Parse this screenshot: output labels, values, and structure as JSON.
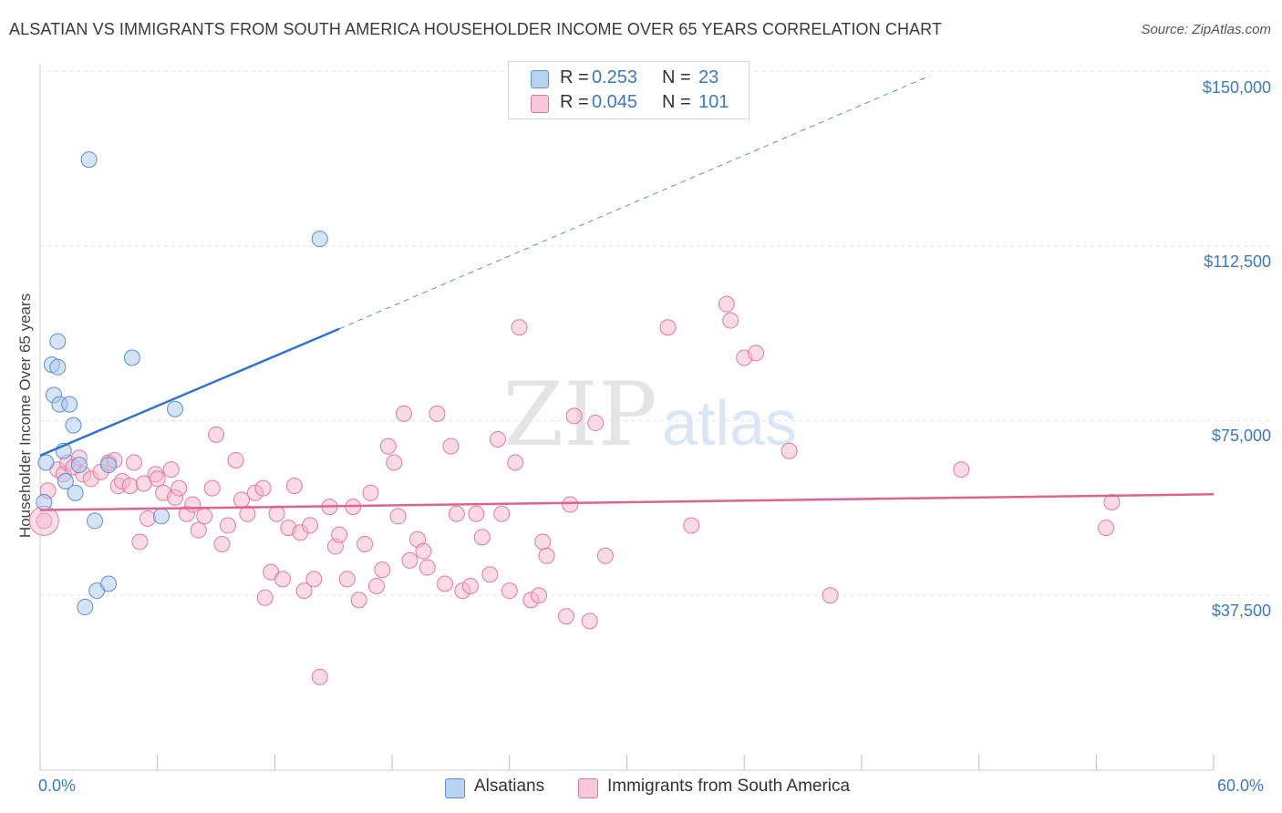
{
  "title": "ALSATIAN VS IMMIGRANTS FROM SOUTH AMERICA HOUSEHOLDER INCOME OVER 65 YEARS CORRELATION CHART",
  "source": "Source: ZipAtlas.com",
  "watermark": {
    "zip": "ZIP",
    "atlas": "atlas"
  },
  "stats": [
    {
      "r_label": "R =",
      "r_value": "0.253",
      "n_label": "N =",
      "n_value": "23"
    },
    {
      "r_label": "R =",
      "r_value": "0.045",
      "n_label": "N =",
      "n_value": "101"
    }
  ],
  "legend": {
    "series1": "Alsatians",
    "series2": "Immigrants from South America"
  },
  "colors": {
    "blue_fill": "#a9c7ee",
    "blue_stroke": "#5a8fd6",
    "blue_line": "#2f72cf",
    "pink_fill": "#f6b8cb",
    "pink_stroke": "#e07a9c",
    "pink_line": "#e0628f",
    "tick_label": "#3a78c9",
    "grid": "#e3e3e3"
  },
  "chart_data": {
    "type": "scatter",
    "title": "ALSATIAN VS IMMIGRANTS FROM SOUTH AMERICA HOUSEHOLDER INCOME OVER 65 YEARS CORRELATION CHART",
    "xlabel": "",
    "ylabel": "Householder Income Over 65 years",
    "xlim": [
      0,
      60
    ],
    "ylim": [
      0,
      156000
    ],
    "x_tick_labels": [
      "0.0%",
      "60.0%"
    ],
    "y_ticks": [
      37500,
      75000,
      112500,
      150000
    ],
    "y_tick_labels": [
      "$37,500",
      "$75,000",
      "$112,500",
      "$150,000"
    ],
    "series": [
      {
        "name": "Alsatians",
        "color": "blue",
        "trend": {
          "x0": 0,
          "y0": 67500,
          "x1": 15.3,
          "y1": 94700,
          "dash_to_x": 45.5,
          "dash_to_y": 149000
        },
        "points": [
          [
            0.2,
            57500
          ],
          [
            0.3,
            66000
          ],
          [
            0.6,
            87000
          ],
          [
            0.7,
            80500
          ],
          [
            0.9,
            92000
          ],
          [
            0.9,
            86500
          ],
          [
            1.0,
            78500
          ],
          [
            1.2,
            68500
          ],
          [
            1.3,
            62000
          ],
          [
            1.5,
            78500
          ],
          [
            1.7,
            74000
          ],
          [
            1.8,
            59500
          ],
          [
            2.0,
            65500
          ],
          [
            2.3,
            35000
          ],
          [
            2.5,
            131000
          ],
          [
            2.8,
            53500
          ],
          [
            2.9,
            38500
          ],
          [
            3.5,
            40000
          ],
          [
            3.5,
            65500
          ],
          [
            4.7,
            88500
          ],
          [
            6.2,
            54500
          ],
          [
            6.9,
            77500
          ],
          [
            14.3,
            114000
          ]
        ]
      },
      {
        "name": "Immigrants from South America",
        "color": "pink",
        "trend": {
          "x0": 0,
          "y0": 55800,
          "x1": 60,
          "y1": 59200
        },
        "points": [
          [
            0.2,
            53500
          ],
          [
            0.4,
            60000
          ],
          [
            0.9,
            64500
          ],
          [
            1.2,
            63500
          ],
          [
            1.4,
            66000
          ],
          [
            1.7,
            65000
          ],
          [
            2.0,
            67000
          ],
          [
            2.2,
            63500
          ],
          [
            2.6,
            62500
          ],
          [
            3.1,
            64000
          ],
          [
            3.5,
            66000
          ],
          [
            3.8,
            66500
          ],
          [
            4.0,
            61000
          ],
          [
            4.2,
            62000
          ],
          [
            4.6,
            61000
          ],
          [
            4.8,
            66000
          ],
          [
            5.1,
            49000
          ],
          [
            5.3,
            61500
          ],
          [
            5.5,
            54000
          ],
          [
            5.9,
            63500
          ],
          [
            6.0,
            62500
          ],
          [
            6.3,
            59500
          ],
          [
            6.7,
            64500
          ],
          [
            6.9,
            58500
          ],
          [
            7.1,
            60500
          ],
          [
            7.5,
            55000
          ],
          [
            7.8,
            57000
          ],
          [
            8.1,
            51500
          ],
          [
            8.4,
            54500
          ],
          [
            8.8,
            60500
          ],
          [
            9.0,
            72000
          ],
          [
            9.3,
            48500
          ],
          [
            9.6,
            52500
          ],
          [
            10.0,
            66500
          ],
          [
            10.3,
            58000
          ],
          [
            10.6,
            55000
          ],
          [
            11.0,
            59500
          ],
          [
            11.4,
            60500
          ],
          [
            11.5,
            37000
          ],
          [
            11.8,
            42500
          ],
          [
            12.1,
            55000
          ],
          [
            12.4,
            41000
          ],
          [
            12.7,
            52000
          ],
          [
            13.0,
            61000
          ],
          [
            13.3,
            51000
          ],
          [
            13.5,
            38500
          ],
          [
            13.8,
            52500
          ],
          [
            14.0,
            41000
          ],
          [
            14.3,
            20000
          ],
          [
            14.8,
            56500
          ],
          [
            15.1,
            48000
          ],
          [
            15.3,
            50500
          ],
          [
            15.7,
            41000
          ],
          [
            16.0,
            56500
          ],
          [
            16.3,
            36500
          ],
          [
            16.6,
            48500
          ],
          [
            16.9,
            59500
          ],
          [
            17.2,
            39500
          ],
          [
            17.5,
            43000
          ],
          [
            17.8,
            69500
          ],
          [
            18.1,
            66000
          ],
          [
            18.3,
            54500
          ],
          [
            18.6,
            76500
          ],
          [
            18.9,
            45000
          ],
          [
            19.3,
            49500
          ],
          [
            19.6,
            47000
          ],
          [
            19.8,
            43500
          ],
          [
            20.3,
            76500
          ],
          [
            20.7,
            40000
          ],
          [
            21.0,
            69500
          ],
          [
            21.3,
            55000
          ],
          [
            21.6,
            38500
          ],
          [
            22.0,
            39500
          ],
          [
            22.3,
            55000
          ],
          [
            22.6,
            50000
          ],
          [
            23.0,
            42000
          ],
          [
            23.4,
            71000
          ],
          [
            23.6,
            55000
          ],
          [
            24.0,
            38500
          ],
          [
            24.3,
            66000
          ],
          [
            24.5,
            95000
          ],
          [
            25.1,
            36500
          ],
          [
            25.5,
            37500
          ],
          [
            25.7,
            49000
          ],
          [
            25.9,
            46000
          ],
          [
            26.9,
            33000
          ],
          [
            27.1,
            57000
          ],
          [
            27.3,
            76000
          ],
          [
            28.1,
            32000
          ],
          [
            28.4,
            74500
          ],
          [
            28.9,
            46000
          ],
          [
            32.1,
            95000
          ],
          [
            33.3,
            52500
          ],
          [
            35.1,
            100000
          ],
          [
            35.3,
            96500
          ],
          [
            36.0,
            88500
          ],
          [
            36.6,
            89500
          ],
          [
            38.3,
            68500
          ],
          [
            40.4,
            37500
          ],
          [
            47.1,
            64500
          ],
          [
            54.5,
            52000
          ],
          [
            54.8,
            57500
          ]
        ]
      }
    ]
  }
}
